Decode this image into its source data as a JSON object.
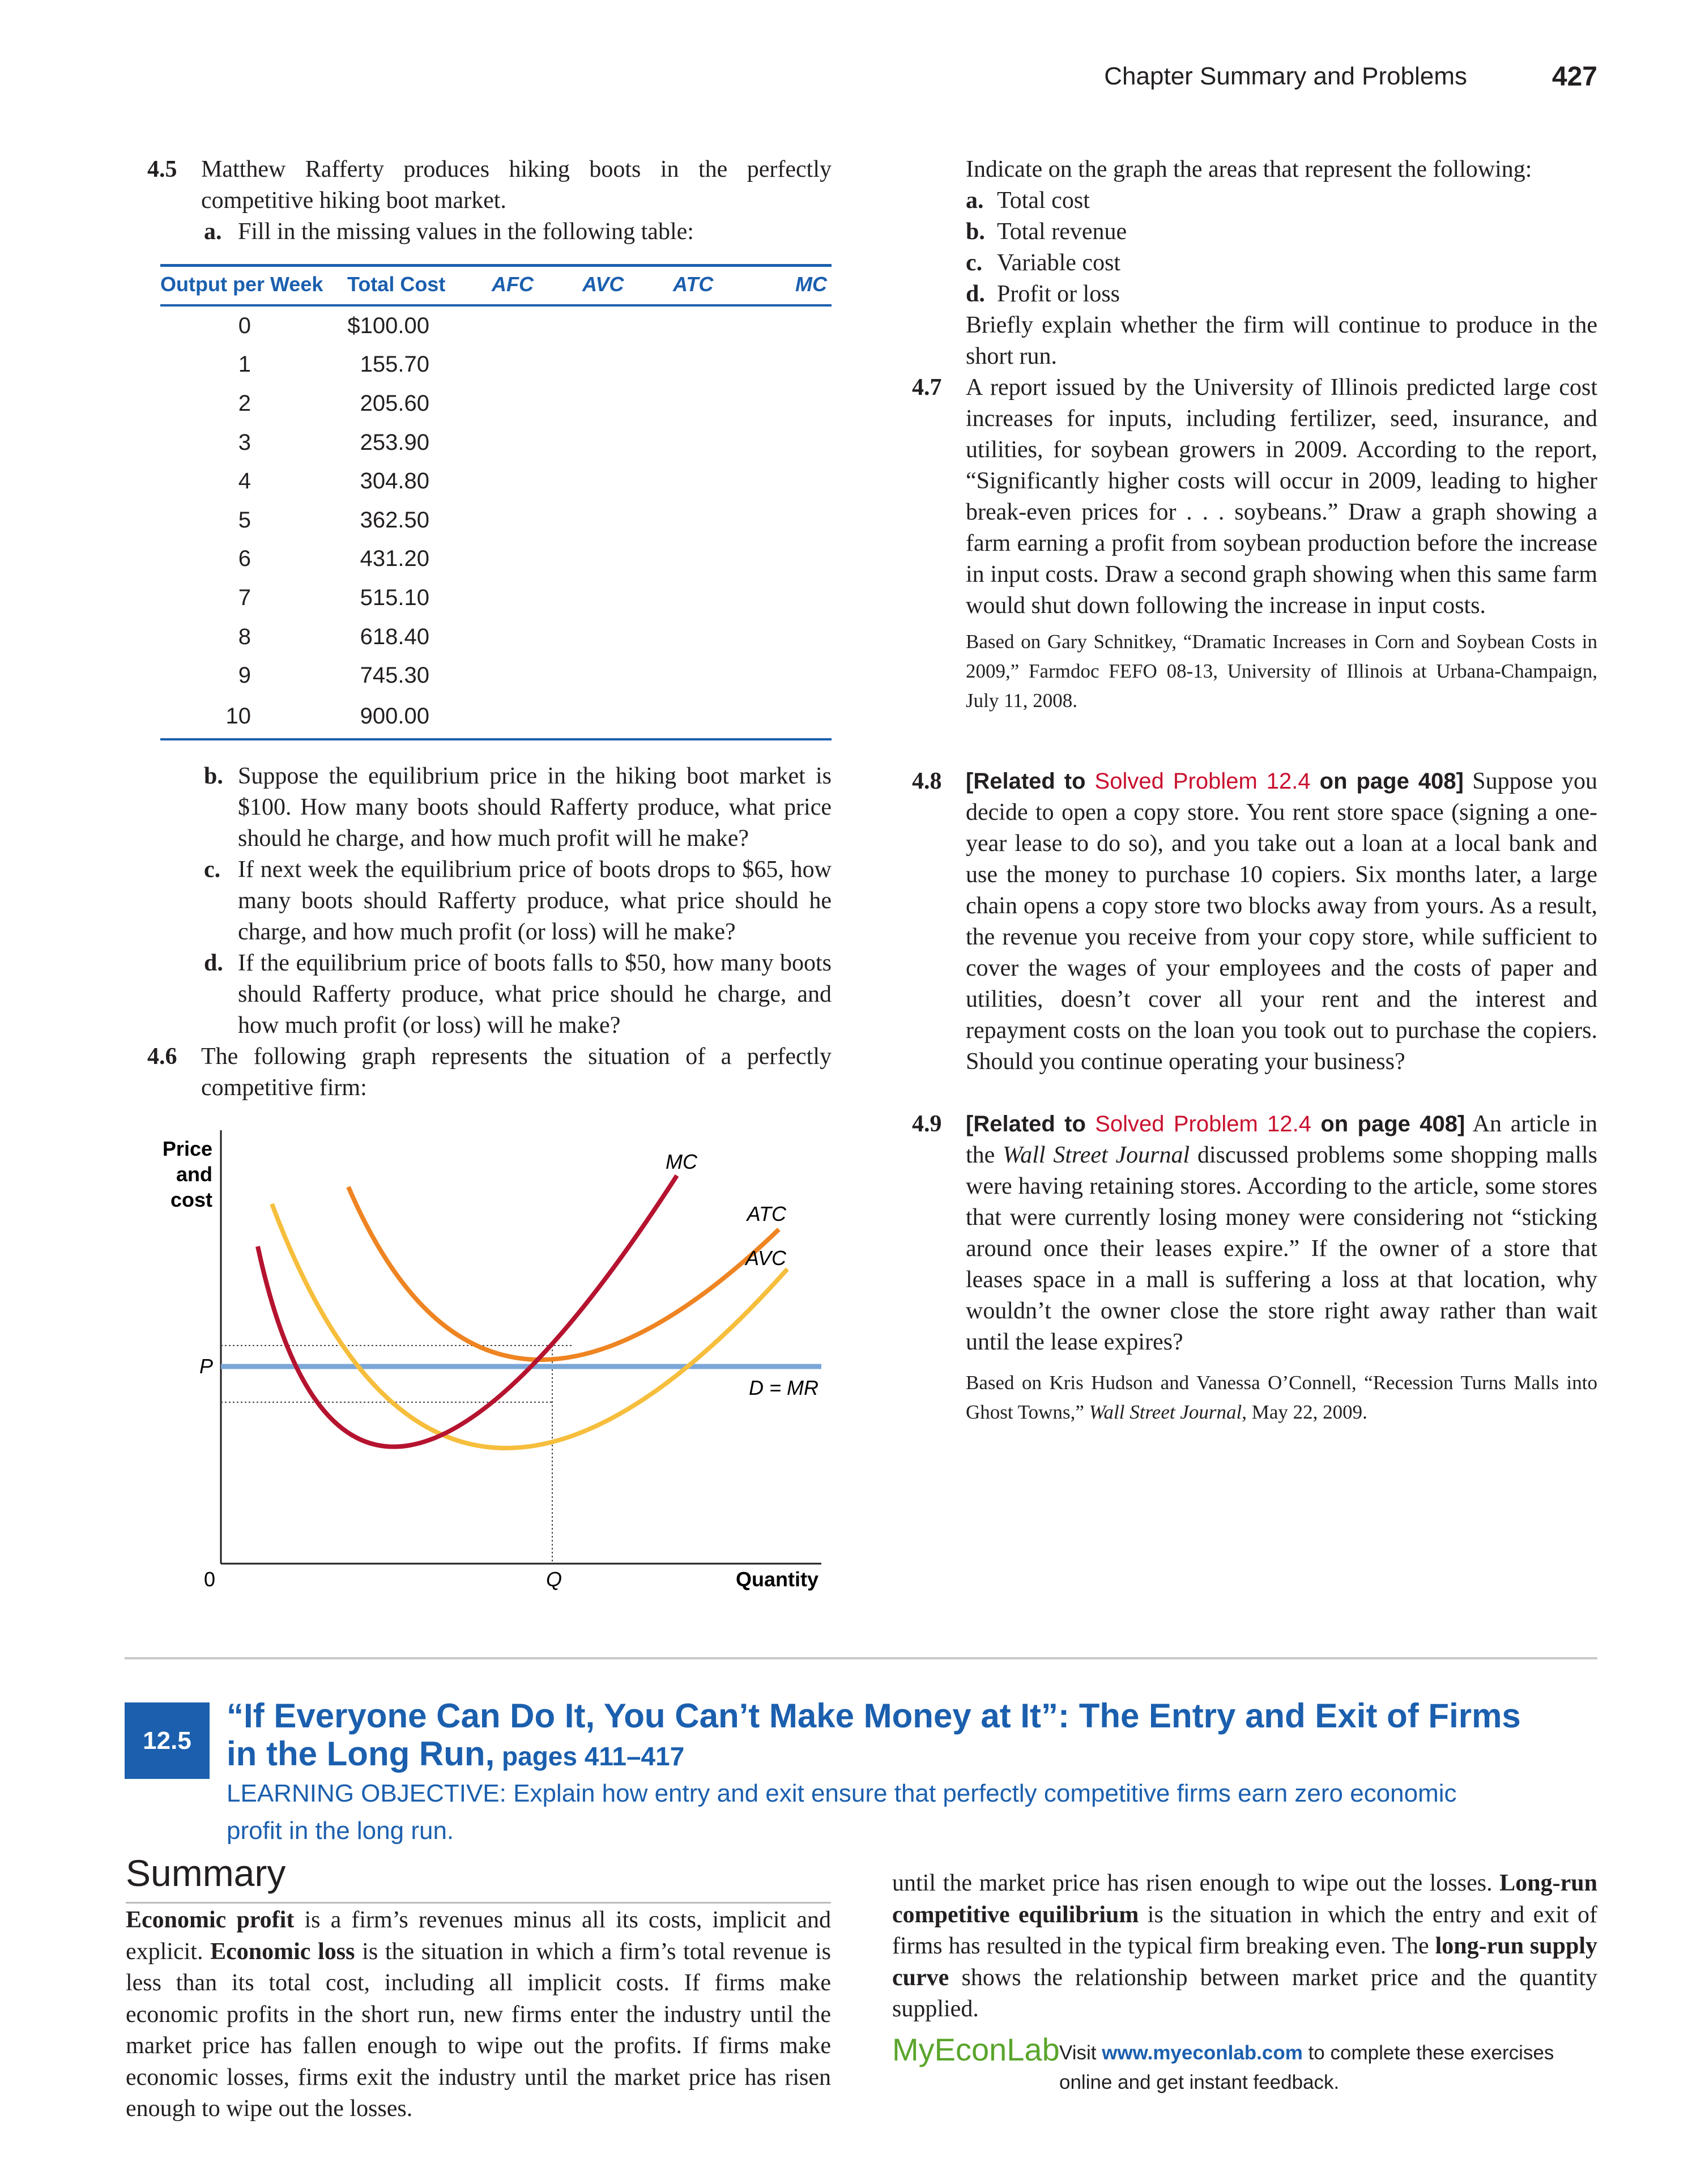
{
  "header": {
    "running_head": "Chapter Summary and Problems",
    "page_number": "427"
  },
  "p45": {
    "num": "4.5",
    "text": "Matthew Rafferty produces hiking boots in the perfectly competitive hiking boot market.",
    "a_label": "a.",
    "a_text": "Fill in the missing values in the following table:",
    "table": {
      "headers": [
        "Output per Week",
        "Total Cost",
        "AFC",
        "AVC",
        "ATC",
        "MC"
      ],
      "rows": [
        [
          "0",
          "$100.00"
        ],
        [
          "1",
          "155.70"
        ],
        [
          "2",
          "205.60"
        ],
        [
          "3",
          "253.90"
        ],
        [
          "4",
          "304.80"
        ],
        [
          "5",
          "362.50"
        ],
        [
          "6",
          "431.20"
        ],
        [
          "7",
          "515.10"
        ],
        [
          "8",
          "618.40"
        ],
        [
          "9",
          "745.30"
        ],
        [
          "10",
          "900.00"
        ]
      ]
    },
    "b_label": "b.",
    "b_text": "Suppose the equilibrium price in the hiking boot market is $100. How many boots should Rafferty produce, what price should he charge, and how much profit will he make?",
    "c_label": "c.",
    "c_text": "If next week the equilibrium price of boots drops to $65, how many boots should Rafferty produce, what price should he charge, and how much profit (or loss) will he make?",
    "d_label": "d.",
    "d_text": "If the equilibrium price of boots falls to $50, how many boots should Rafferty produce, what price should he charge, and how much profit (or loss) will he make?"
  },
  "p46": {
    "num": "4.6",
    "text": "The following graph represents the situation of a perfectly competitive firm:",
    "intro": "Indicate on the graph the areas that represent the following:",
    "items": [
      {
        "label": "a.",
        "text": "Total cost"
      },
      {
        "label": "b.",
        "text": "Total revenue"
      },
      {
        "label": "c.",
        "text": "Variable cost"
      },
      {
        "label": "d.",
        "text": "Profit or loss"
      }
    ],
    "explain": "Briefly explain whether the firm will continue to produce in the short run."
  },
  "graph": {
    "y_label_1": "Price",
    "y_label_2": "and",
    "y_label_3": "cost",
    "x_label": "Quantity",
    "origin": "0",
    "p_label": "P",
    "q_label": "Q",
    "mc_label": "MC",
    "atc_label": "ATC",
    "avc_label": "AVC",
    "dmr_label": "D = MR",
    "colors": {
      "mc": "#b5132f",
      "atc": "#ee8422",
      "avc": "#f6be3c",
      "demand": "#7ba7d8"
    }
  },
  "p47": {
    "num": "4.7",
    "text": "A report issued by the University of Illinois predicted large cost increases for inputs, including fertilizer, seed, insurance, and utilities, for soybean growers in 2009. According to the report, “Significantly higher costs will occur in 2009, leading to higher break-even prices for . . . soybeans.” Draw a graph showing a farm earning a profit from soybean production before the increase in input costs. Draw a second graph showing when this same farm would shut down following the increase in input costs.",
    "source": "Based on Gary Schnitkey, “Dramatic Increases in Corn and Soybean Costs in 2009,” Farmdoc FEFO 08-13, University of Illinois at Urbana-Champaign, July 11, 2008."
  },
  "p48": {
    "num": "4.8",
    "related_open": "[Related to ",
    "related_link": "Solved Problem 12.4",
    "related_close": " on page 408]",
    "text": "Suppose you decide to open a copy store. You rent store space (signing a one-year lease to do so), and you take out a loan at a local bank and use the money to purchase 10 copiers. Six months later, a large chain opens a copy store two blocks away from yours. As a result, the revenue you receive from your copy store, while sufficient to cover the wages of your employees and the costs of paper and utilities, doesn’t cover all your rent and the interest and repayment costs on the loan you took out to purchase the copiers. Should you continue operating your business?"
  },
  "p49": {
    "num": "4.9",
    "related_open": "[Related to ",
    "related_link": "Solved Problem 12.4",
    "related_close": " on page 408]",
    "text_1": "An article in the ",
    "journal": "Wall Street Journal",
    "text_2": " discussed problems some shopping malls were having retaining stores. According to the article, some stores that were currently losing money were considering not “sticking around once their leases expire.” If the owner of a store that leases space in a mall is suffering a loss at that location, why wouldn’t the owner close the store right away rather than wait until the lease expires?",
    "source_1": "Based on Kris Hudson and Vanessa O’Connell, “Recession Turns Malls into Ghost Towns,” ",
    "source_journal": "Wall Street Journal",
    "source_2": ", May 22, 2009."
  },
  "section": {
    "number": "12.5",
    "title": "“If Everyone Can Do It, You Can’t Make Money at It”: The Entry and Exit of Firms in the Long Run,",
    "pages": " pages 411–417",
    "learning_objective": "LEARNING OBJECTIVE: Explain how entry and exit ensure that perfectly competitive firms earn zero economic profit in the long run."
  },
  "summary": {
    "heading": "Summary",
    "term_1": "Economic profit",
    "t1": " is a firm’s revenues minus all its costs, implicit and explicit. ",
    "term_2": "Economic loss",
    "t2": " is the situation in which a firm’s total revenue is less than its total cost, including all implicit costs. If firms make economic profits in the short run, new firms enter the industry until the market price has fallen enough to wipe out the profits. If firms make economic losses, firms exit the industry until the market price has risen enough to wipe out the losses. ",
    "term_3": "Long-run competitive equilibrium",
    "t3": " is the situation in which the entry and exit of firms has resulted in the typical firm breaking even. The ",
    "term_4": "long-run supply curve",
    "t4": " shows the relationship between market price and the quantity supplied."
  },
  "myeconlab": {
    "logo": "MyEconLab",
    "visit": "Visit ",
    "url": "www.myeconlab.com",
    "rest": " to complete these exercises online and get instant feedback."
  }
}
